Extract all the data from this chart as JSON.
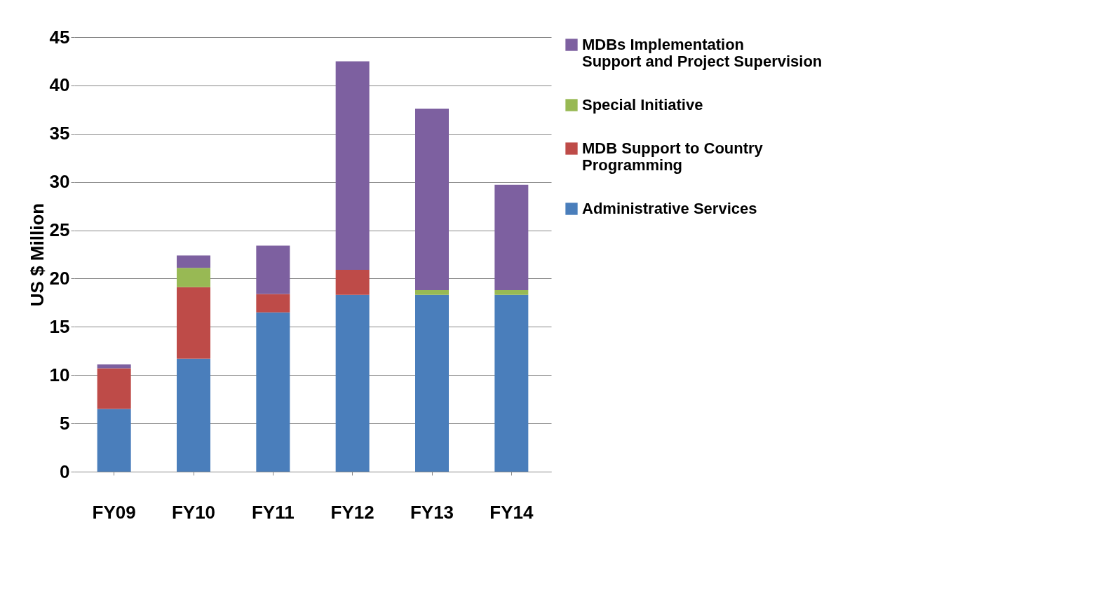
{
  "chart_data": {
    "type": "bar",
    "stacked": true,
    "ylabel": "US $ Million",
    "categories": [
      "FY09",
      "FY10",
      "FY11",
      "FY12",
      "FY13",
      "FY14"
    ],
    "series": [
      {
        "name": "Administrative  Services",
        "color": "#4a7ebb",
        "values": [
          6.5,
          11.7,
          16.5,
          18.3,
          18.3,
          18.3
        ]
      },
      {
        "name": "MDB Support to Country Programming",
        "color": "#be4b48",
        "values": [
          4.2,
          7.4,
          1.9,
          2.6,
          0,
          0
        ]
      },
      {
        "name": "Special Initiative",
        "color": "#98b954",
        "values": [
          0,
          2.0,
          0,
          0,
          0.5,
          0.5
        ]
      },
      {
        "name": "MDBs Implementation Support and Project Supervision",
        "color": "#7d60a0",
        "values": [
          0.4,
          1.3,
          5.0,
          21.6,
          18.8,
          10.9
        ]
      }
    ],
    "ylim": [
      0,
      45
    ],
    "yticks": [
      0,
      5,
      10,
      15,
      20,
      25,
      30,
      35,
      40,
      45
    ],
    "grid": "y",
    "legend": "right"
  }
}
